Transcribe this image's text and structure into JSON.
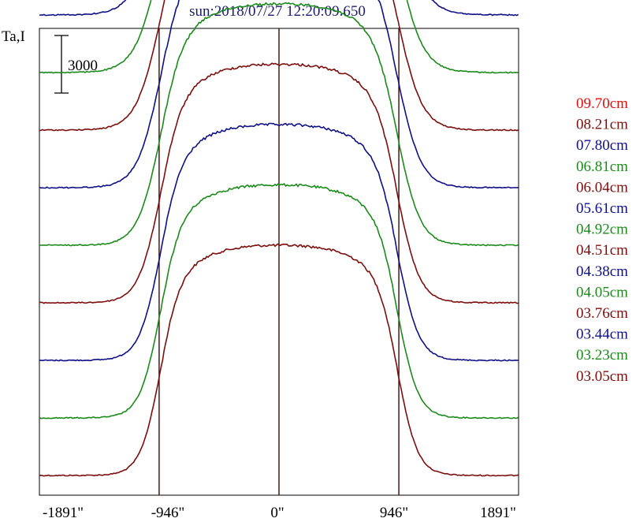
{
  "chart_data": {
    "type": "line",
    "title": "sun:2018/07/27 12:20:09.650",
    "ylabel": "Ta,I",
    "scale_bar_label": "3000",
    "x_ticks": [
      {
        "value": -1891,
        "label": "-1891\""
      },
      {
        "value": -946,
        "label": "-946\""
      },
      {
        "value": 0,
        "label": "0\""
      },
      {
        "value": 946,
        "label": "946\""
      },
      {
        "value": 1891,
        "label": "1891\""
      }
    ],
    "xlim": [
      -1891,
      1891
    ],
    "vertical_lines": [
      -946,
      0,
      946
    ],
    "series_offset": 3000,
    "limb_rise": 12000,
    "series": [
      {
        "name": "03.05cm",
        "color": "#7b0e0e"
      },
      {
        "name": "03.23cm",
        "color": "#1b8a1b"
      },
      {
        "name": "03.44cm",
        "color": "#101085"
      },
      {
        "name": "03.76cm",
        "color": "#7b0e0e"
      },
      {
        "name": "04.05cm",
        "color": "#1b8a1b"
      },
      {
        "name": "04.38cm",
        "color": "#101085"
      },
      {
        "name": "04.51cm",
        "color": "#7b0e0e"
      },
      {
        "name": "04.92cm",
        "color": "#1b8a1b"
      },
      {
        "name": "05.61cm",
        "color": "#101085"
      },
      {
        "name": "06.04cm",
        "color": "#7b0e0e"
      },
      {
        "name": "06.81cm",
        "color": "#1b8a1b"
      },
      {
        "name": "07.80cm",
        "color": "#101085"
      },
      {
        "name": "08.21cm",
        "color": "#7b0e0e"
      },
      {
        "name": "09.70cm",
        "color": "#e01010"
      }
    ]
  }
}
